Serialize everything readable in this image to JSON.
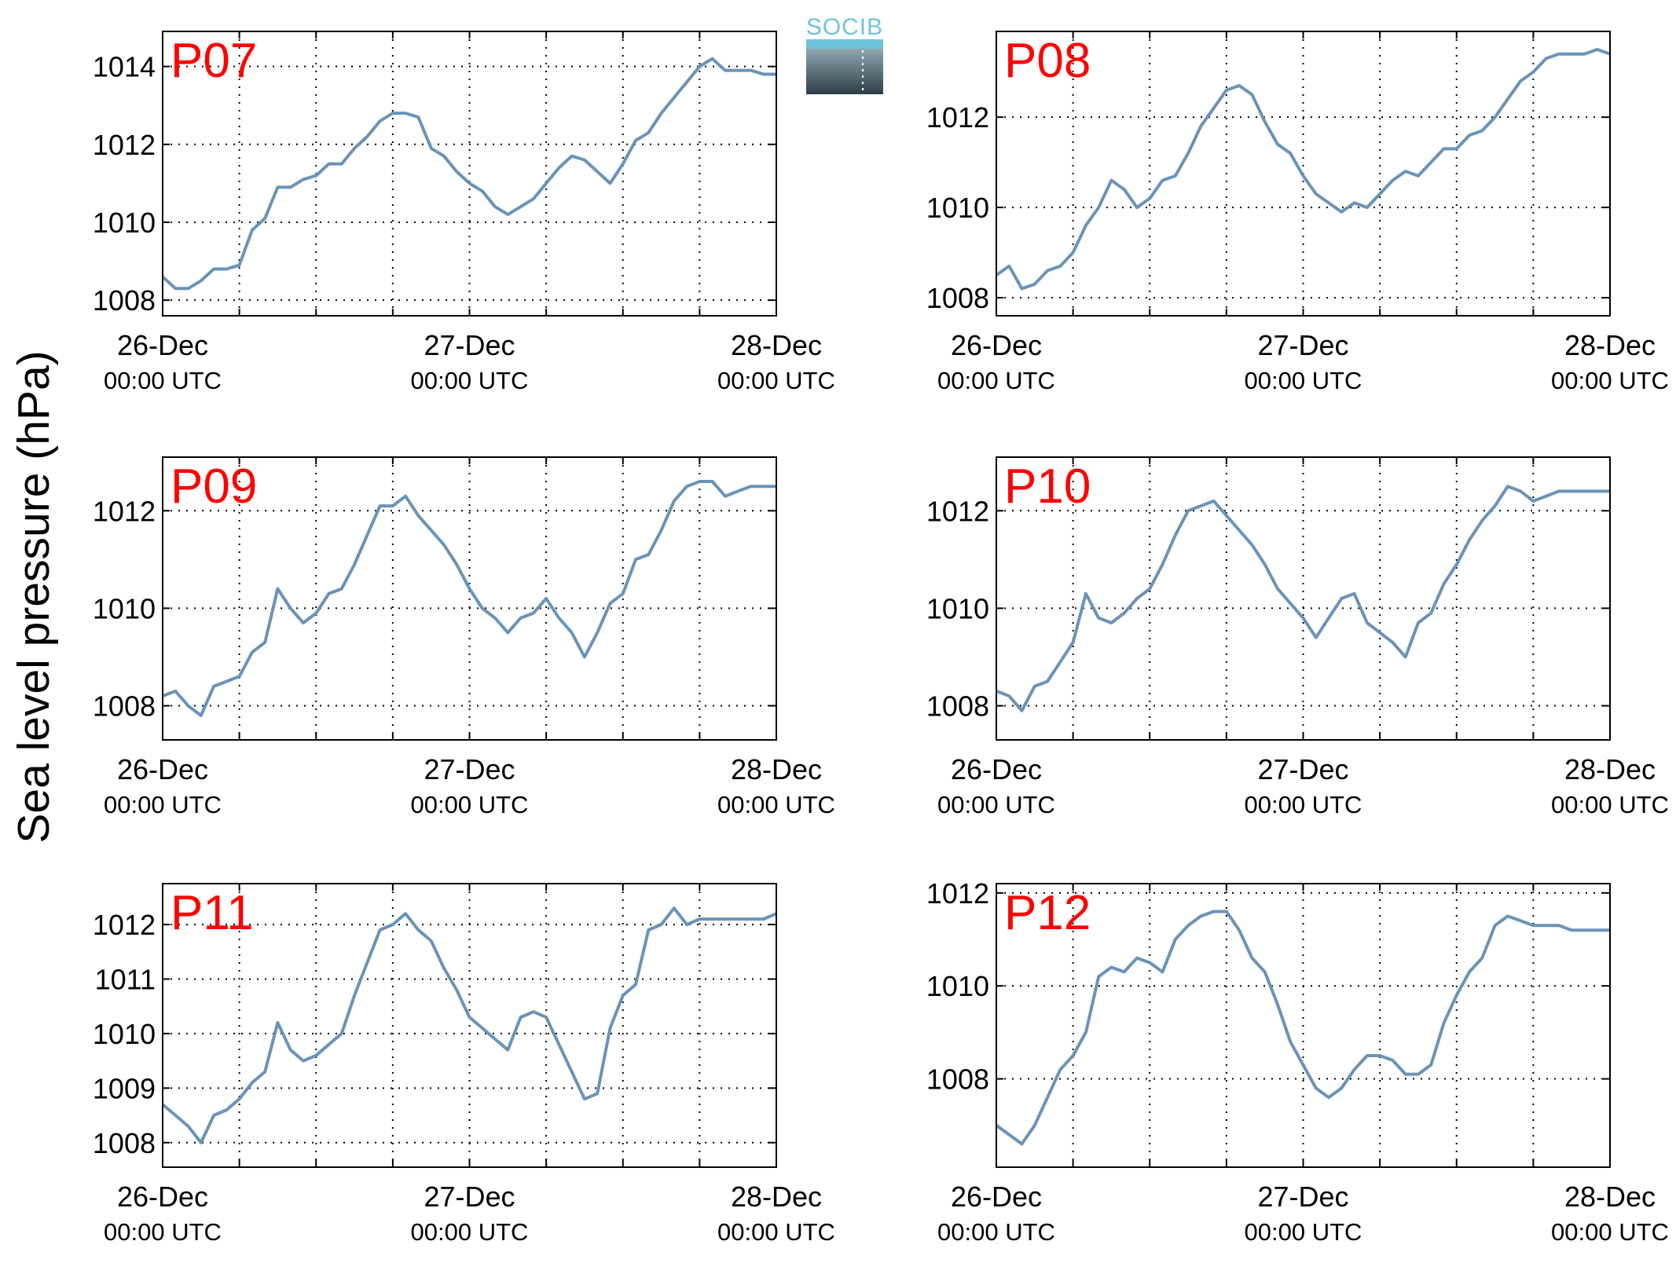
{
  "figure": {
    "ylabel": "Sea level pressure (hPa)",
    "logo_text": "SOCIB",
    "line_color": "#6a93b8",
    "label_color": "#ff0000"
  },
  "chart_data": [
    {
      "type": "line",
      "title": "P07",
      "ylabel": "Sea level pressure (hPa)",
      "xlim": [
        "2013-12-26T00:00",
        "2013-12-28T00:00"
      ],
      "ylim": [
        1007.6,
        1014.9
      ],
      "yticks": [
        1008,
        1010,
        1012,
        1014
      ],
      "ytick_labels": [
        "1008",
        "1010",
        "1012",
        "1014"
      ],
      "xtick_labels": [
        {
          "date": "26-Dec",
          "time": "00:00 UTC"
        },
        {
          "date": "27-Dec",
          "time": "00:00 UTC"
        },
        {
          "date": "28-Dec",
          "time": "00:00 UTC"
        }
      ],
      "grid": true,
      "series": [
        {
          "hours": [
            0,
            1,
            2,
            3,
            4,
            5,
            6,
            7,
            8,
            9,
            10,
            11,
            12,
            13,
            14,
            15,
            16,
            17,
            18,
            19,
            20,
            21,
            22,
            23,
            24,
            25,
            26,
            27,
            28,
            29,
            30,
            31,
            32,
            33,
            34,
            35,
            36,
            37,
            38,
            39,
            40,
            41,
            42,
            43,
            44,
            45,
            46,
            47,
            48
          ],
          "values": [
            1008.6,
            1008.3,
            1008.3,
            1008.5,
            1008.8,
            1008.8,
            1008.9,
            1009.8,
            1010.1,
            1010.9,
            1010.9,
            1011.1,
            1011.2,
            1011.5,
            1011.5,
            1011.9,
            1012.2,
            1012.6,
            1012.8,
            1012.8,
            1012.7,
            1011.9,
            1011.7,
            1011.3,
            1011.0,
            1010.8,
            1010.4,
            1010.2,
            1010.4,
            1010.6,
            1011.0,
            1011.4,
            1011.7,
            1011.6,
            1011.3,
            1011.0,
            1011.5,
            1012.1,
            1012.3,
            1012.8,
            1013.2,
            1013.6,
            1014.0,
            1014.2,
            1013.9,
            1013.9,
            1013.9,
            1013.8,
            1013.8
          ]
        }
      ]
    },
    {
      "type": "line",
      "title": "P08",
      "ylabel": "Sea level pressure (hPa)",
      "xlim": [
        "2013-12-26T00:00",
        "2013-12-28T00:00"
      ],
      "ylim": [
        1007.6,
        1013.9
      ],
      "yticks": [
        1008,
        1010,
        1012
      ],
      "ytick_labels": [
        "1008",
        "1010",
        "1012"
      ],
      "xtick_labels": [
        {
          "date": "26-Dec",
          "time": "00:00 UTC"
        },
        {
          "date": "27-Dec",
          "time": "00:00 UTC"
        },
        {
          "date": "28-Dec",
          "time": "00:00 UTC"
        }
      ],
      "grid": true,
      "series": [
        {
          "hours": [
            0,
            1,
            2,
            3,
            4,
            5,
            6,
            7,
            8,
            9,
            10,
            11,
            12,
            13,
            14,
            15,
            16,
            17,
            18,
            19,
            20,
            21,
            22,
            23,
            24,
            25,
            26,
            27,
            28,
            29,
            30,
            31,
            32,
            33,
            34,
            35,
            36,
            37,
            38,
            39,
            40,
            41,
            42,
            43,
            44,
            45,
            46,
            47,
            48
          ],
          "values": [
            1008.5,
            1008.7,
            1008.2,
            1008.3,
            1008.6,
            1008.7,
            1009.0,
            1009.6,
            1010.0,
            1010.6,
            1010.4,
            1010.0,
            1010.2,
            1010.6,
            1010.7,
            1011.2,
            1011.8,
            1012.2,
            1012.6,
            1012.7,
            1012.5,
            1011.9,
            1011.4,
            1011.2,
            1010.7,
            1010.3,
            1010.1,
            1009.9,
            1010.1,
            1010.0,
            1010.3,
            1010.6,
            1010.8,
            1010.7,
            1011.0,
            1011.3,
            1011.3,
            1011.6,
            1011.7,
            1012.0,
            1012.4,
            1012.8,
            1013.0,
            1013.3,
            1013.4,
            1013.4,
            1013.4,
            1013.5,
            1013.4
          ]
        }
      ]
    },
    {
      "type": "line",
      "title": "P09",
      "ylabel": "Sea level pressure (hPa)",
      "xlim": [
        "2013-12-26T00:00",
        "2013-12-28T00:00"
      ],
      "ylim": [
        1007.3,
        1013.1
      ],
      "yticks": [
        1008,
        1010,
        1012
      ],
      "ytick_labels": [
        "1008",
        "1010",
        "1012"
      ],
      "xtick_labels": [
        {
          "date": "26-Dec",
          "time": "00:00 UTC"
        },
        {
          "date": "27-Dec",
          "time": "00:00 UTC"
        },
        {
          "date": "28-Dec",
          "time": "00:00 UTC"
        }
      ],
      "grid": true,
      "series": [
        {
          "hours": [
            0,
            1,
            2,
            3,
            4,
            5,
            6,
            7,
            8,
            9,
            10,
            11,
            12,
            13,
            14,
            15,
            16,
            17,
            18,
            19,
            20,
            21,
            22,
            23,
            24,
            25,
            26,
            27,
            28,
            29,
            30,
            31,
            32,
            33,
            34,
            35,
            36,
            37,
            38,
            39,
            40,
            41,
            42,
            43,
            44,
            45,
            46,
            47,
            48
          ],
          "values": [
            1008.2,
            1008.3,
            1008.0,
            1007.8,
            1008.4,
            1008.5,
            1008.6,
            1009.1,
            1009.3,
            1010.4,
            1010.0,
            1009.7,
            1009.9,
            1010.3,
            1010.4,
            1010.9,
            1011.5,
            1012.1,
            1012.1,
            1012.3,
            1011.9,
            1011.6,
            1011.3,
            1010.9,
            1010.4,
            1010.0,
            1009.8,
            1009.5,
            1009.8,
            1009.9,
            1010.2,
            1009.8,
            1009.5,
            1009.0,
            1009.5,
            1010.1,
            1010.3,
            1011.0,
            1011.1,
            1011.6,
            1012.2,
            1012.5,
            1012.6,
            1012.6,
            1012.3,
            1012.4,
            1012.5,
            1012.5,
            1012.5
          ]
        }
      ]
    },
    {
      "type": "line",
      "title": "P10",
      "ylabel": "Sea level pressure (hPa)",
      "xlim": [
        "2013-12-26T00:00",
        "2013-12-28T00:00"
      ],
      "ylim": [
        1007.3,
        1013.1
      ],
      "yticks": [
        1008,
        1010,
        1012
      ],
      "ytick_labels": [
        "1008",
        "1010",
        "1012"
      ],
      "xtick_labels": [
        {
          "date": "26-Dec",
          "time": "00:00 UTC"
        },
        {
          "date": "27-Dec",
          "time": "00:00 UTC"
        },
        {
          "date": "28-Dec",
          "time": "00:00 UTC"
        }
      ],
      "grid": true,
      "series": [
        {
          "hours": [
            0,
            1,
            2,
            3,
            4,
            5,
            6,
            7,
            8,
            9,
            10,
            11,
            12,
            13,
            14,
            15,
            16,
            17,
            18,
            19,
            20,
            21,
            22,
            23,
            24,
            25,
            26,
            27,
            28,
            29,
            30,
            31,
            32,
            33,
            34,
            35,
            36,
            37,
            38,
            39,
            40,
            41,
            42,
            43,
            44,
            45,
            46,
            47,
            48
          ],
          "values": [
            1008.3,
            1008.2,
            1007.9,
            1008.4,
            1008.5,
            1008.9,
            1009.3,
            1010.3,
            1009.8,
            1009.7,
            1009.9,
            1010.2,
            1010.4,
            1010.9,
            1011.5,
            1012.0,
            1012.1,
            1012.2,
            1011.9,
            1011.6,
            1011.3,
            1010.9,
            1010.4,
            1010.1,
            1009.8,
            1009.4,
            1009.8,
            1010.2,
            1010.3,
            1009.7,
            1009.5,
            1009.3,
            1009.0,
            1009.7,
            1009.9,
            1010.5,
            1010.9,
            1011.4,
            1011.8,
            1012.1,
            1012.5,
            1012.4,
            1012.2,
            1012.3,
            1012.4,
            1012.4,
            1012.4,
            1012.4,
            1012.4
          ]
        }
      ]
    },
    {
      "type": "line",
      "title": "P11",
      "ylabel": "Sea level pressure (hPa)",
      "xlim": [
        "2013-12-26T00:00",
        "2013-12-28T00:00"
      ],
      "ylim": [
        1007.55,
        1012.75
      ],
      "yticks": [
        1008,
        1009,
        1010,
        1011,
        1012
      ],
      "ytick_labels": [
        "1008",
        "1009",
        "1010",
        "1011",
        "1012"
      ],
      "xtick_labels": [
        {
          "date": "26-Dec",
          "time": "00:00 UTC"
        },
        {
          "date": "27-Dec",
          "time": "00:00 UTC"
        },
        {
          "date": "28-Dec",
          "time": "00:00 UTC"
        }
      ],
      "grid": true,
      "series": [
        {
          "hours": [
            0,
            1,
            2,
            3,
            4,
            5,
            6,
            7,
            8,
            9,
            10,
            11,
            12,
            13,
            14,
            15,
            16,
            17,
            18,
            19,
            20,
            21,
            22,
            23,
            24,
            25,
            26,
            27,
            28,
            29,
            30,
            31,
            32,
            33,
            34,
            35,
            36,
            37,
            38,
            39,
            40,
            41,
            42,
            43,
            44,
            45,
            46,
            47,
            48
          ],
          "values": [
            1008.7,
            1008.5,
            1008.3,
            1008.0,
            1008.5,
            1008.6,
            1008.8,
            1009.1,
            1009.3,
            1010.2,
            1009.7,
            1009.5,
            1009.6,
            1009.8,
            1010.0,
            1010.7,
            1011.3,
            1011.9,
            1012.0,
            1012.2,
            1011.9,
            1011.7,
            1011.2,
            1010.8,
            1010.3,
            1010.1,
            1009.9,
            1009.7,
            1010.3,
            1010.4,
            1010.3,
            1009.8,
            1009.3,
            1008.8,
            1008.9,
            1010.1,
            1010.7,
            1010.9,
            1011.9,
            1012.0,
            1012.3,
            1012.0,
            1012.1,
            1012.1,
            1012.1,
            1012.1,
            1012.1,
            1012.1,
            1012.2
          ]
        }
      ]
    },
    {
      "type": "line",
      "title": "P12",
      "ylabel": "Sea level pressure (hPa)",
      "xlim": [
        "2013-12-26T00:00",
        "2013-12-28T00:00"
      ],
      "ylim": [
        1006.1,
        1012.2
      ],
      "yticks": [
        1008,
        1010,
        1012
      ],
      "ytick_labels": [
        "1008",
        "1010",
        "1012"
      ],
      "xtick_labels": [
        {
          "date": "26-Dec",
          "time": "00:00 UTC"
        },
        {
          "date": "27-Dec",
          "time": "00:00 UTC"
        },
        {
          "date": "28-Dec",
          "time": "00:00 UTC"
        }
      ],
      "grid": true,
      "series": [
        {
          "hours": [
            0,
            1,
            2,
            3,
            4,
            5,
            6,
            7,
            8,
            9,
            10,
            11,
            12,
            13,
            14,
            15,
            16,
            17,
            18,
            19,
            20,
            21,
            22,
            23,
            24,
            25,
            26,
            27,
            28,
            29,
            30,
            31,
            32,
            33,
            34,
            35,
            36,
            37,
            38,
            39,
            40,
            41,
            42,
            43,
            44,
            45,
            46,
            47,
            48
          ],
          "values": [
            1007.0,
            1006.8,
            1006.6,
            1007.0,
            1007.6,
            1008.2,
            1008.5,
            1009.0,
            1010.2,
            1010.4,
            1010.3,
            1010.6,
            1010.5,
            1010.3,
            1011.0,
            1011.3,
            1011.5,
            1011.6,
            1011.6,
            1011.2,
            1010.6,
            1010.3,
            1009.6,
            1008.8,
            1008.3,
            1007.8,
            1007.6,
            1007.8,
            1008.2,
            1008.5,
            1008.5,
            1008.4,
            1008.1,
            1008.1,
            1008.3,
            1009.2,
            1009.8,
            1010.3,
            1010.6,
            1011.3,
            1011.5,
            1011.4,
            1011.3,
            1011.3,
            1011.3,
            1011.2,
            1011.2,
            1011.2,
            1011.2
          ]
        }
      ]
    }
  ]
}
